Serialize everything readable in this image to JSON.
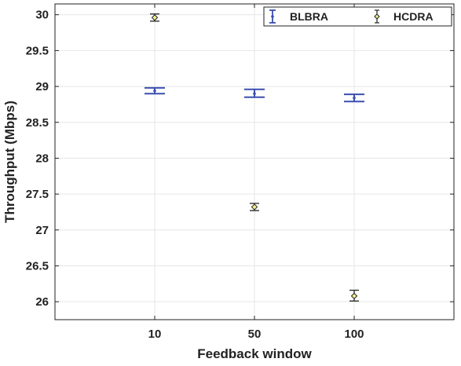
{
  "chart_data": {
    "type": "scatter",
    "title": "",
    "xlabel": "Feedback window",
    "ylabel": "Throughput (Mbps)",
    "categories": [
      "10",
      "50",
      "100"
    ],
    "ylim": [
      25.75,
      30.15
    ],
    "yticks": [
      26,
      26.5,
      27,
      27.5,
      28,
      28.5,
      29,
      29.5,
      30
    ],
    "ytick_labels": [
      "26",
      "26.5",
      "27",
      "27.5",
      "28",
      "28.5",
      "29",
      "29.5",
      "30"
    ],
    "grid": true,
    "legend_position": "top-right",
    "series": [
      {
        "name": "BLBRA",
        "color": "#3a4fb0",
        "marker": "dot",
        "values": [
          28.94,
          28.9,
          28.84
        ],
        "lower": [
          28.9,
          28.85,
          28.79
        ],
        "upper": [
          28.98,
          28.96,
          28.89
        ]
      },
      {
        "name": "HCDRA",
        "color": "#222222",
        "marker": "diamond",
        "marker_fill": "#f2f08a",
        "values": [
          29.96,
          27.32,
          26.08
        ],
        "lower": [
          29.91,
          27.27,
          26.01
        ],
        "upper": [
          30.01,
          27.37,
          26.16
        ]
      }
    ]
  }
}
